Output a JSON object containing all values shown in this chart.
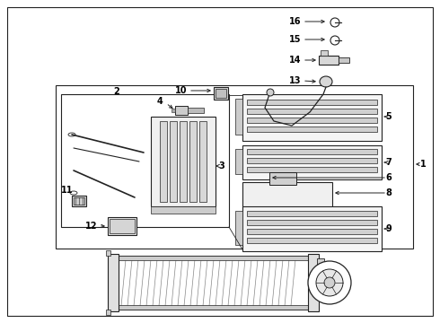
{
  "bg_color": "#ffffff",
  "line_color": "#222222",
  "text_color": "#000000",
  "fig_width": 4.9,
  "fig_height": 3.6,
  "dpi": 100
}
